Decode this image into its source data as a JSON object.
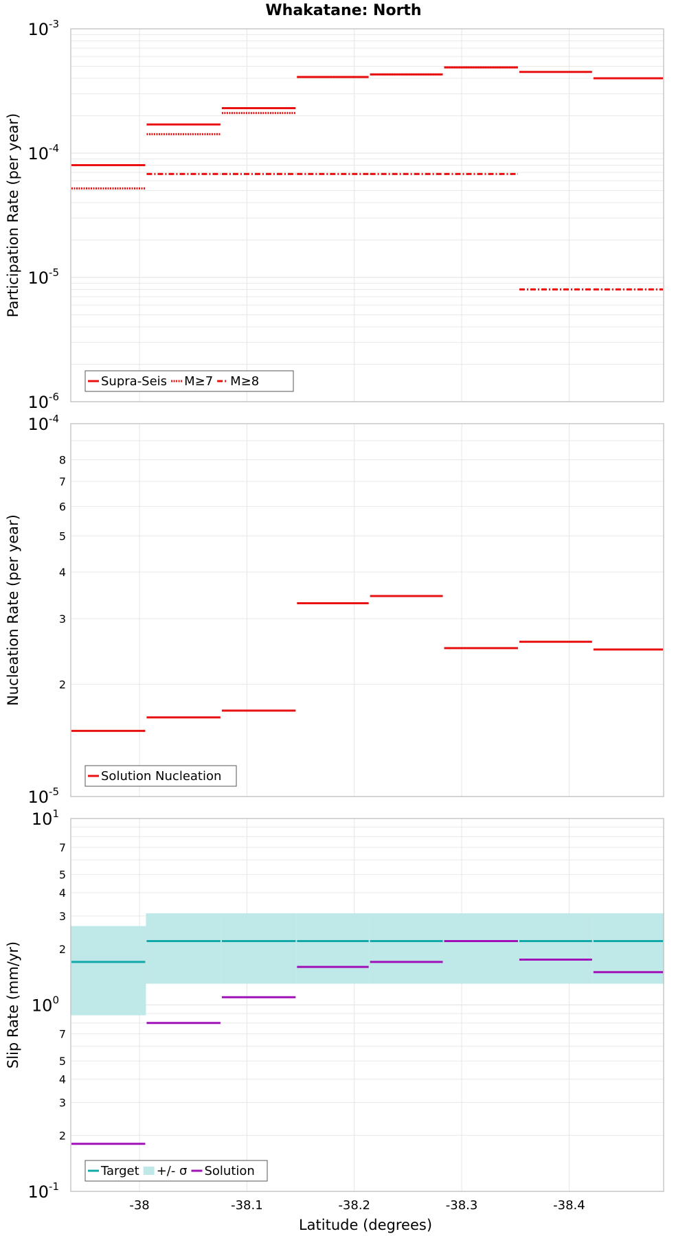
{
  "colors": {
    "red": "#e81010",
    "teal": "#12a8a8",
    "teal_band": "#bfe8e8",
    "purple": "#a010b8",
    "grid": "#e6e6e6",
    "frame": "#bbbbbb"
  },
  "chart_data": {
    "title": "Whakatane: North",
    "xlabel": "Latitude (degrees)",
    "xlim": [
      -37.936,
      -38.488
    ],
    "xticks": [
      -38.0,
      -38.1,
      -38.2,
      -38.3,
      -38.4
    ],
    "xtick_labels": [
      "-38",
      "-38.1",
      "-38.2",
      "-38.3",
      "-38.4"
    ],
    "segment_edges": [
      -37.936,
      -38.006,
      -38.076,
      -38.146,
      -38.214,
      -38.283,
      -38.353,
      -38.422,
      -38.488
    ],
    "panels": [
      {
        "type": "line",
        "scale": "log",
        "ylabel": "Participation Rate (per year)",
        "ylim": [
          1e-06,
          0.001
        ],
        "major_ticks": [
          {
            "value": 1e-06,
            "base": "10",
            "exp": "-6"
          },
          {
            "value": 1e-05,
            "base": "10",
            "exp": "-5"
          },
          {
            "value": 0.0001,
            "base": "10",
            "exp": "-4"
          },
          {
            "value": 0.001,
            "base": "10",
            "exp": "-3"
          }
        ],
        "minor_ticks": [],
        "legend": [
          {
            "label": "Supra-Seis",
            "style": "solid",
            "color": "red"
          },
          {
            "label": "M≥7",
            "style": "dotted",
            "color": "red"
          },
          {
            "label": "M≥8",
            "style": "dashdot",
            "color": "red"
          }
        ],
        "series": [
          {
            "name": "Supra-Seis",
            "style": "solid",
            "color": "red",
            "values": [
              8e-05,
              0.00017,
              0.00023,
              0.00041,
              0.00043,
              0.00049,
              0.00045,
              0.0004
            ]
          },
          {
            "name": "M≥7",
            "style": "dotted",
            "color": "red",
            "values": [
              5.2e-05,
              0.000142,
              0.00021,
              0.00041,
              0.00043,
              0.00049,
              null,
              null
            ]
          },
          {
            "name": "M≥8",
            "style": "dashdot",
            "color": "red",
            "values": [
              null,
              6.8e-05,
              6.8e-05,
              6.8e-05,
              6.8e-05,
              6.8e-05,
              8e-06,
              8e-06
            ]
          }
        ]
      },
      {
        "type": "line",
        "scale": "log",
        "ylabel": "Nucleation Rate (per year)",
        "ylim": [
          1e-05,
          0.0001
        ],
        "major_ticks": [
          {
            "value": 1e-05,
            "base": "10",
            "exp": "-5"
          },
          {
            "value": 0.0001,
            "base": "10",
            "exp": "-4"
          }
        ],
        "minor_ticks": [
          {
            "value": 2e-05,
            "label": "2"
          },
          {
            "value": 3e-05,
            "label": "3"
          },
          {
            "value": 4e-05,
            "label": "4"
          },
          {
            "value": 5e-05,
            "label": "5"
          },
          {
            "value": 6e-05,
            "label": "6"
          },
          {
            "value": 7e-05,
            "label": "7"
          },
          {
            "value": 8e-05,
            "label": "8"
          }
        ],
        "legend": [
          {
            "label": "Solution Nucleation",
            "style": "solid",
            "color": "red"
          }
        ],
        "series": [
          {
            "name": "Solution Nucleation",
            "style": "solid",
            "color": "red",
            "values": [
              1.5e-05,
              1.63e-05,
              1.7e-05,
              3.3e-05,
              3.45e-05,
              2.5e-05,
              2.6e-05,
              2.48e-05
            ]
          }
        ]
      },
      {
        "type": "line",
        "scale": "log",
        "ylabel": "Slip Rate (mm/yr)",
        "ylim": [
          0.1,
          10
        ],
        "major_ticks": [
          {
            "value": 0.1,
            "base": "10",
            "exp": "-1"
          },
          {
            "value": 1,
            "base": "10",
            "exp": "0"
          },
          {
            "value": 10,
            "base": "10",
            "exp": "1"
          }
        ],
        "minor_ticks": [
          {
            "value": 0.2,
            "label": "2"
          },
          {
            "value": 0.3,
            "label": "3"
          },
          {
            "value": 0.4,
            "label": "4"
          },
          {
            "value": 0.5,
            "label": "5"
          },
          {
            "value": 0.7,
            "label": "7"
          },
          {
            "value": 2,
            "label": "2"
          },
          {
            "value": 3,
            "label": "3"
          },
          {
            "value": 4,
            "label": "4"
          },
          {
            "value": 5,
            "label": "5"
          },
          {
            "value": 7,
            "label": "7"
          }
        ],
        "legend": [
          {
            "label": "Target",
            "style": "solid",
            "color": "teal"
          },
          {
            "label": "+/- σ",
            "style": "band",
            "color": "teal_band"
          },
          {
            "label": "Solution",
            "style": "solid",
            "color": "purple"
          }
        ],
        "bands": [
          {
            "name": "+/- σ",
            "color": "teal_band",
            "low": [
              0.88,
              1.3,
              1.3,
              1.3,
              1.3,
              1.3,
              1.3,
              1.3
            ],
            "high": [
              2.65,
              3.1,
              3.1,
              3.1,
              3.1,
              3.1,
              3.1,
              3.1
            ]
          }
        ],
        "series": [
          {
            "name": "Target",
            "style": "solid",
            "color": "teal",
            "values": [
              1.7,
              2.2,
              2.2,
              2.2,
              2.2,
              2.2,
              2.2,
              2.2
            ]
          },
          {
            "name": "Solution",
            "style": "solid",
            "color": "purple",
            "values": [
              0.18,
              0.8,
              1.1,
              1.6,
              1.7,
              2.2,
              1.75,
              1.5
            ]
          }
        ]
      }
    ]
  }
}
